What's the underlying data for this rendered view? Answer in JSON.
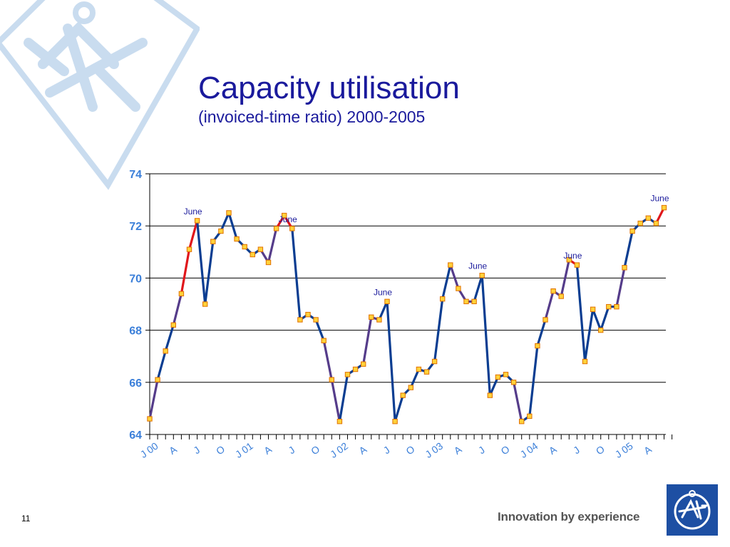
{
  "slide": {
    "title": "Capacity utilisation",
    "subtitle": "(invoiced-time ratio) 2000-2005",
    "page_number": "11",
    "tagline": "Innovation by experience"
  },
  "colors": {
    "title": "#1a1a9c",
    "axis_labels": "#3b7fd9",
    "line_default": "#0a3d91",
    "line_purple": "#553c8a",
    "line_red": "#e0161b",
    "marker_fill": "#ffd23a",
    "marker_edge": "#e07000",
    "logo": "#1d4fa3",
    "watermark": "#c9dcef"
  },
  "chart_data": {
    "type": "line",
    "title": "Capacity utilisation",
    "ylim": [
      64,
      74
    ],
    "yticks": [
      64,
      66,
      68,
      70,
      72,
      74
    ],
    "grid": true,
    "x_tick_labels": [
      "J 00",
      "A",
      "J",
      "O",
      "J 01",
      "A",
      "J",
      "O",
      "J 02",
      "A",
      "J",
      "O",
      "J 03",
      "A",
      "J",
      "O",
      "J 04",
      "A",
      "J",
      "O",
      "J 05",
      "A"
    ],
    "x_tick_months": [
      0,
      3,
      6,
      9,
      12,
      15,
      18,
      21,
      24,
      27,
      30,
      33,
      36,
      39,
      42,
      45,
      48,
      51,
      54,
      57,
      60,
      63
    ],
    "months": 66,
    "values": [
      64.6,
      66.1,
      67.2,
      68.2,
      69.4,
      71.1,
      72.2,
      69.0,
      71.4,
      71.8,
      72.5,
      71.5,
      71.2,
      70.9,
      71.1,
      70.6,
      71.9,
      72.4,
      71.9,
      68.4,
      68.6,
      68.4,
      67.6,
      66.1,
      64.5,
      66.3,
      66.5,
      66.7,
      68.5,
      68.4,
      69.1,
      64.5,
      65.5,
      65.8,
      66.5,
      66.4,
      66.8,
      69.2,
      70.5,
      69.6,
      69.1,
      69.1,
      70.1,
      65.5,
      66.2,
      66.3,
      66.0,
      64.5,
      64.7,
      67.4,
      68.4,
      69.5,
      69.3,
      70.7,
      70.5,
      66.8,
      68.8,
      68.0,
      68.9,
      68.9,
      70.4,
      71.8,
      72.1,
      72.3,
      72.1,
      72.7
    ],
    "segment_colors": [
      "purple",
      "navy",
      "navy",
      "purple",
      "red",
      "red",
      "navy",
      "navy",
      "navy",
      "navy",
      "navy",
      "navy",
      "navy",
      "navy",
      "purple",
      "purple",
      "red",
      "red",
      "navy",
      "navy",
      "navy",
      "navy",
      "purple",
      "purple",
      "navy",
      "navy",
      "navy",
      "purple",
      "purple",
      "navy",
      "navy",
      "navy",
      "navy",
      "navy",
      "navy",
      "navy",
      "navy",
      "navy",
      "purple",
      "purple",
      "purple",
      "navy",
      "navy",
      "navy",
      "navy",
      "navy",
      "purple",
      "navy",
      "navy",
      "navy",
      "purple",
      "purple",
      "purple",
      "red",
      "navy",
      "navy",
      "navy",
      "navy",
      "navy",
      "purple",
      "navy",
      "navy",
      "navy",
      "navy",
      "red"
    ],
    "annotations": [
      {
        "text": "June",
        "month": 6
      },
      {
        "text": "June",
        "month": 18
      },
      {
        "text": "June",
        "month": 30
      },
      {
        "text": "June",
        "month": 42
      },
      {
        "text": "June",
        "month": 54
      },
      {
        "text": "June",
        "month": 65
      }
    ]
  }
}
